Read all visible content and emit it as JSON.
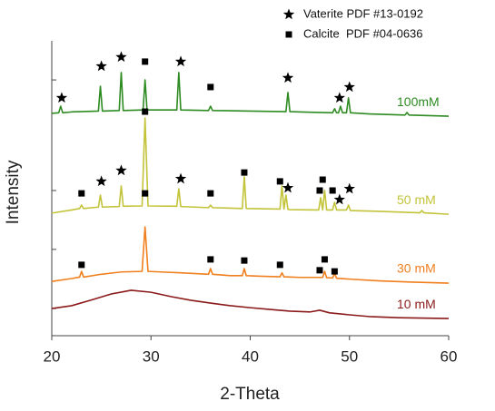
{
  "chart_data": {
    "type": "line",
    "x_label": "2-Theta",
    "y_label": "Intensity",
    "xlim": [
      20,
      60
    ],
    "xticks": [
      20,
      30,
      40,
      50,
      60
    ],
    "ylim": [
      0,
      100
    ],
    "yticks": [
      9.5,
      30.2,
      50.8,
      89.5
    ],
    "grid": false,
    "legend": "top-right",
    "series": [
      {
        "name": "10 mM",
        "color": "#8b1a1a",
        "x": [
          20,
          22,
          24,
          26,
          28,
          30,
          32,
          34,
          36,
          38,
          40,
          42,
          44,
          46,
          47,
          48,
          50,
          52,
          55,
          60
        ],
        "values": [
          9.5,
          10.5,
          12.5,
          14.6,
          15.9,
          15.2,
          13.7,
          12.4,
          11.4,
          10.5,
          9.8,
          9.2,
          8.6,
          8.3,
          8.9,
          8,
          7.3,
          6.7,
          6.3,
          6
        ]
      },
      {
        "name": "30 mM",
        "color": "#f07f1e",
        "x": [
          20,
          22,
          22.8,
          23,
          23.2,
          25,
          27,
          29.1,
          29.4,
          29.7,
          31,
          33,
          35.8,
          36,
          36.2,
          38,
          39.2,
          39.4,
          39.6,
          41,
          43,
          43.2,
          43.4,
          45,
          47.3,
          47.5,
          47.7,
          48.3,
          48.5,
          48.7,
          50,
          53,
          56,
          60
        ],
        "values": [
          19,
          20,
          20.5,
          22.5,
          20.5,
          21.5,
          22.3,
          22.5,
          38.1,
          22.5,
          22.3,
          22,
          21.5,
          23.5,
          21.5,
          21,
          21,
          23.5,
          21,
          20.8,
          20.6,
          22,
          20.6,
          20.4,
          20.4,
          22.5,
          20.3,
          20.2,
          21.8,
          20.1,
          19.8,
          19.2,
          18.8,
          18.4
        ]
      },
      {
        "name": "50 mM",
        "color": "#c3c33a",
        "x": [
          20,
          22,
          22.8,
          23,
          23.2,
          24.7,
          24.9,
          25.1,
          26.8,
          27,
          27.2,
          29.1,
          29.4,
          29.7,
          32.6,
          32.8,
          33,
          35.8,
          36,
          36.2,
          39.2,
          39.4,
          39.6,
          43,
          43.2,
          43.4,
          43.6,
          43.8,
          44,
          46.9,
          47.1,
          47.3,
          47.5,
          47.7,
          48.3,
          48.5,
          48.7,
          49.7,
          49.9,
          50.1,
          53,
          57.1,
          57.3,
          57.5,
          60
        ],
        "values": [
          42.9,
          44,
          44.5,
          45.7,
          44.5,
          45,
          49.2,
          45,
          45.2,
          52.4,
          45.3,
          45.4,
          76.2,
          45.4,
          45.3,
          51.4,
          45.2,
          44.8,
          45.7,
          44.8,
          44.5,
          55.6,
          44.5,
          44.3,
          52.4,
          44.3,
          49.2,
          44.2,
          44.1,
          44,
          48.3,
          44,
          50.8,
          44,
          44,
          46.7,
          44,
          44,
          45.7,
          43.8,
          43.5,
          43,
          43.8,
          43,
          42.5
        ]
      },
      {
        "name": "100mM",
        "color": "#2e8b22",
        "x": [
          20,
          20.7,
          20.9,
          21.1,
          22,
          24.7,
          24.9,
          25.1,
          26.8,
          27,
          27.2,
          29.2,
          29.4,
          29.6,
          32.6,
          32.8,
          33,
          35.8,
          36,
          36.2,
          40,
          43.6,
          43.8,
          44,
          46,
          48.3,
          48.5,
          48.7,
          48.9,
          49.1,
          49.3,
          49.7,
          49.9,
          50.1,
          52,
          55.6,
          55.8,
          56,
          60
        ],
        "values": [
          77.8,
          78,
          80.3,
          78,
          78.3,
          78.6,
          87.3,
          78.6,
          78.8,
          92.1,
          78.8,
          79,
          89.5,
          79,
          79,
          92.1,
          79,
          78.8,
          80.3,
          78.8,
          78.6,
          78.4,
          85.1,
          78.4,
          78.2,
          78,
          79.4,
          78,
          78,
          80.3,
          78,
          78,
          83.2,
          78,
          77.6,
          77.2,
          78.1,
          77.2,
          76.8
        ]
      }
    ],
    "markers": [
      {
        "name": "Vaterite PDF #13-0192",
        "symbol": "star",
        "color": "#000000",
        "x": [
          21,
          25,
          27,
          33,
          43.8,
          49,
          50,
          25,
          27,
          33,
          43.8,
          49,
          50
        ],
        "values": [
          83.2,
          94.3,
          97.5,
          95.9,
          90.2,
          83.2,
          87,
          54,
          57.8,
          54.9,
          51.7,
          47.6,
          51.4
        ]
      },
      {
        "name": "Calcite  PDF #04-0636",
        "symbol": "square",
        "color": "#000000",
        "x": [
          29.4,
          36,
          23,
          29.4,
          29.4,
          36,
          39.4,
          43,
          47.3,
          48.3,
          47,
          23,
          36,
          39.4,
          43,
          47.5,
          47,
          48.5
        ],
        "values": [
          95.9,
          87,
          49.8,
          78.4,
          49.8,
          49.8,
          57.1,
          54,
          54.6,
          50.8,
          50.8,
          24.8,
          26.7,
          26.3,
          24.8,
          26.7,
          22.9,
          22.5
        ]
      }
    ]
  }
}
